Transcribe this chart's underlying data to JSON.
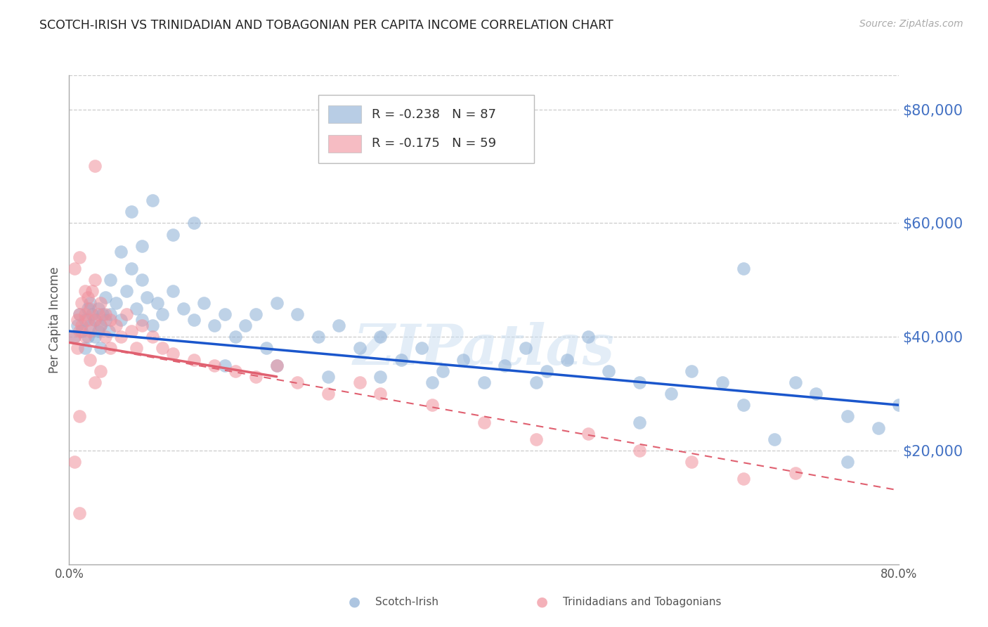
{
  "title": "SCOTCH-IRISH VS TRINIDADIAN AND TOBAGONIAN PER CAPITA INCOME CORRELATION CHART",
  "source": "Source: ZipAtlas.com",
  "ylabel": "Per Capita Income",
  "ytick_labels": [
    "$20,000",
    "$40,000",
    "$60,000",
    "$80,000"
  ],
  "ytick_values": [
    20000,
    40000,
    60000,
    80000
  ],
  "ymin": 0,
  "ymax": 86000,
  "xmin": 0.0,
  "xmax": 0.8,
  "blue_color": "#8aadd4",
  "pink_color": "#f0909c",
  "blue_line_color": "#1a56cc",
  "pink_line_color": "#e06070",
  "legend_blue_r": "R = -0.238",
  "legend_blue_n": "N = 87",
  "legend_pink_r": "R = -0.175",
  "legend_pink_n": "N = 59",
  "watermark": "ZIPatlas",
  "legend_label_blue": "Scotch-Irish",
  "legend_label_pink": "Trinidadians and Tobagonians",
  "blue_x": [
    0.005,
    0.008,
    0.01,
    0.012,
    0.015,
    0.015,
    0.018,
    0.018,
    0.02,
    0.02,
    0.022,
    0.025,
    0.025,
    0.028,
    0.028,
    0.03,
    0.03,
    0.032,
    0.035,
    0.035,
    0.038,
    0.04,
    0.04,
    0.045,
    0.05,
    0.05,
    0.055,
    0.06,
    0.065,
    0.07,
    0.07,
    0.075,
    0.08,
    0.085,
    0.09,
    0.1,
    0.11,
    0.12,
    0.13,
    0.14,
    0.15,
    0.16,
    0.17,
    0.18,
    0.19,
    0.2,
    0.22,
    0.24,
    0.26,
    0.28,
    0.3,
    0.32,
    0.34,
    0.36,
    0.38,
    0.4,
    0.42,
    0.44,
    0.46,
    0.48,
    0.5,
    0.52,
    0.55,
    0.58,
    0.6,
    0.63,
    0.65,
    0.7,
    0.72,
    0.75,
    0.78,
    0.8,
    0.06,
    0.08,
    0.1,
    0.12,
    0.07,
    0.15,
    0.2,
    0.25,
    0.3,
    0.35,
    0.45,
    0.55,
    0.65,
    0.68,
    0.75
  ],
  "blue_y": [
    40000,
    42000,
    44000,
    41000,
    43000,
    38000,
    40000,
    45000,
    42000,
    46000,
    44000,
    40000,
    43000,
    41000,
    45000,
    42000,
    38000,
    44000,
    43000,
    47000,
    41000,
    44000,
    50000,
    46000,
    43000,
    55000,
    48000,
    52000,
    45000,
    43000,
    50000,
    47000,
    42000,
    46000,
    44000,
    48000,
    45000,
    43000,
    46000,
    42000,
    44000,
    40000,
    42000,
    44000,
    38000,
    46000,
    44000,
    40000,
    42000,
    38000,
    40000,
    36000,
    38000,
    34000,
    36000,
    32000,
    35000,
    38000,
    34000,
    36000,
    40000,
    34000,
    32000,
    30000,
    34000,
    32000,
    28000,
    32000,
    30000,
    26000,
    24000,
    28000,
    62000,
    64000,
    58000,
    60000,
    56000,
    35000,
    35000,
    33000,
    33000,
    32000,
    32000,
    25000,
    52000,
    22000,
    18000
  ],
  "pink_x": [
    0.005,
    0.008,
    0.008,
    0.01,
    0.01,
    0.012,
    0.012,
    0.015,
    0.015,
    0.018,
    0.018,
    0.02,
    0.02,
    0.022,
    0.025,
    0.025,
    0.028,
    0.03,
    0.03,
    0.035,
    0.035,
    0.04,
    0.04,
    0.045,
    0.05,
    0.055,
    0.06,
    0.065,
    0.07,
    0.08,
    0.09,
    0.1,
    0.12,
    0.14,
    0.16,
    0.18,
    0.2,
    0.22,
    0.25,
    0.28,
    0.3,
    0.35,
    0.4,
    0.45,
    0.5,
    0.55,
    0.6,
    0.65,
    0.7,
    0.005,
    0.01,
    0.015,
    0.02,
    0.025,
    0.005,
    0.01,
    0.025,
    0.03,
    0.01
  ],
  "pink_y": [
    40000,
    43000,
    38000,
    44000,
    41000,
    42000,
    46000,
    40000,
    44000,
    43000,
    47000,
    41000,
    45000,
    48000,
    43000,
    50000,
    44000,
    42000,
    46000,
    40000,
    44000,
    43000,
    38000,
    42000,
    40000,
    44000,
    41000,
    38000,
    42000,
    40000,
    38000,
    37000,
    36000,
    35000,
    34000,
    33000,
    35000,
    32000,
    30000,
    32000,
    30000,
    28000,
    25000,
    22000,
    23000,
    20000,
    18000,
    15000,
    16000,
    52000,
    54000,
    48000,
    36000,
    70000,
    18000,
    26000,
    32000,
    34000,
    9000
  ]
}
